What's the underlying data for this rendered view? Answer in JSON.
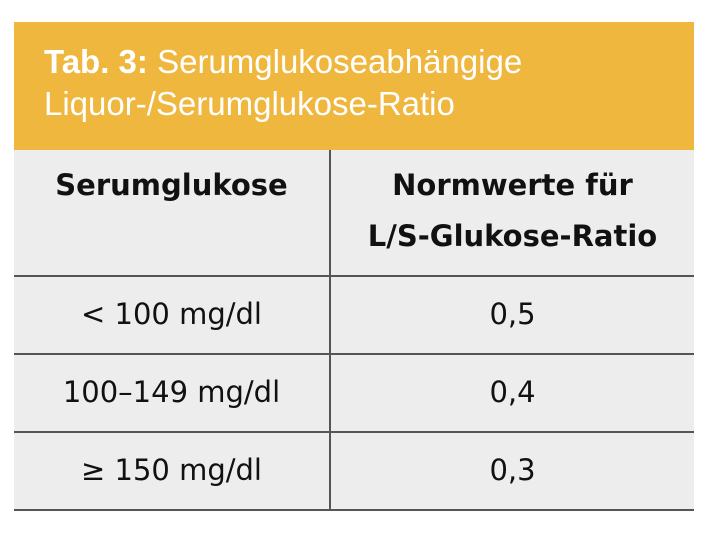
{
  "header": {
    "label": "Tab. 3:",
    "title_lines": [
      "Serumglukoseabhängige",
      "Liquor-/Serumglukose-Ratio"
    ]
  },
  "table": {
    "columns": [
      "Serumglukose",
      [
        "Normwerte für",
        "L/S-Glukose-Ratio"
      ]
    ],
    "rows": [
      [
        "< 100 mg/dl",
        "0,5"
      ],
      [
        "100–149 mg/dl",
        "0,4"
      ],
      [
        "≥ 150 mg/dl",
        "0,3"
      ]
    ]
  }
}
